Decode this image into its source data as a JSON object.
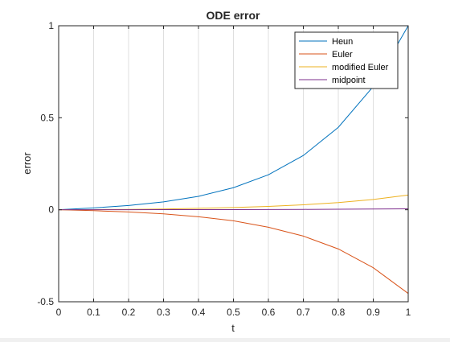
{
  "chart_data": {
    "type": "line",
    "title": "ODE error",
    "xlabel": "t",
    "ylabel": "error",
    "xlim": [
      0,
      1
    ],
    "ylim": [
      -0.5,
      1
    ],
    "xticks": [
      0,
      0.1,
      0.2,
      0.3,
      0.4,
      0.5,
      0.6,
      0.7,
      0.8,
      0.9,
      1
    ],
    "xtick_labels": [
      "0",
      "0.1",
      "0.2",
      "0.3",
      "0.4",
      "0.5",
      "0.6",
      "0.7",
      "0.8",
      "0.9",
      "1"
    ],
    "yticks": [
      -0.5,
      0,
      0.5,
      1
    ],
    "ytick_labels": [
      "-0.5",
      "0",
      "0.5",
      "1"
    ],
    "grid": "vertical",
    "legend_position": "top-right",
    "x": [
      0,
      0.1,
      0.2,
      0.3,
      0.4,
      0.5,
      0.6,
      0.7,
      0.8,
      0.9,
      1
    ],
    "series": [
      {
        "name": "Heun",
        "color": "#0072BD",
        "values": [
          0,
          0.01,
          0.023,
          0.043,
          0.073,
          0.12,
          0.19,
          0.295,
          0.448,
          0.67,
          1.0
        ]
      },
      {
        "name": "Euler",
        "color": "#D95319",
        "values": [
          0,
          -0.005,
          -0.012,
          -0.022,
          -0.038,
          -0.06,
          -0.095,
          -0.143,
          -0.213,
          -0.315,
          -0.455
        ]
      },
      {
        "name": "modified Euler",
        "color": "#EDB120",
        "values": [
          0,
          0.001,
          0.002,
          0.004,
          0.008,
          0.012,
          0.018,
          0.027,
          0.039,
          0.056,
          0.08
        ]
      },
      {
        "name": "midpoint",
        "color": "#7E2F8E",
        "values": [
          0,
          0,
          0,
          0.0005,
          0.001,
          0.001,
          0.0015,
          0.002,
          0.003,
          0.004,
          0.005
        ]
      }
    ]
  }
}
